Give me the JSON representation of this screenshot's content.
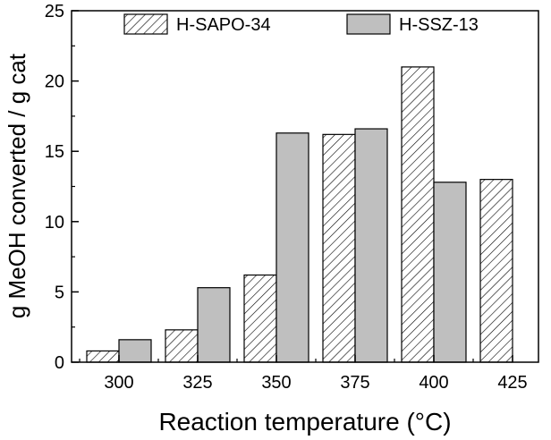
{
  "chart_data": {
    "type": "bar",
    "categories": [
      "300",
      "325",
      "350",
      "375",
      "400",
      "425"
    ],
    "series": [
      {
        "name": "H-SAPO-34",
        "values": [
          0.8,
          2.3,
          6.2,
          16.2,
          21.0,
          13.0
        ],
        "fill": "hatched"
      },
      {
        "name": "H-SSZ-13",
        "values": [
          1.6,
          5.3,
          16.3,
          16.6,
          12.8,
          null
        ],
        "fill": "#bfbfbf"
      }
    ],
    "xlabel": "Reaction temperature (°C)",
    "ylabel": "g MeOH converted / g cat",
    "ylim": [
      0,
      25
    ],
    "yticks": [
      "0",
      "5",
      "10",
      "15",
      "20",
      "25"
    ],
    "grid": false,
    "legend_position": "top"
  }
}
